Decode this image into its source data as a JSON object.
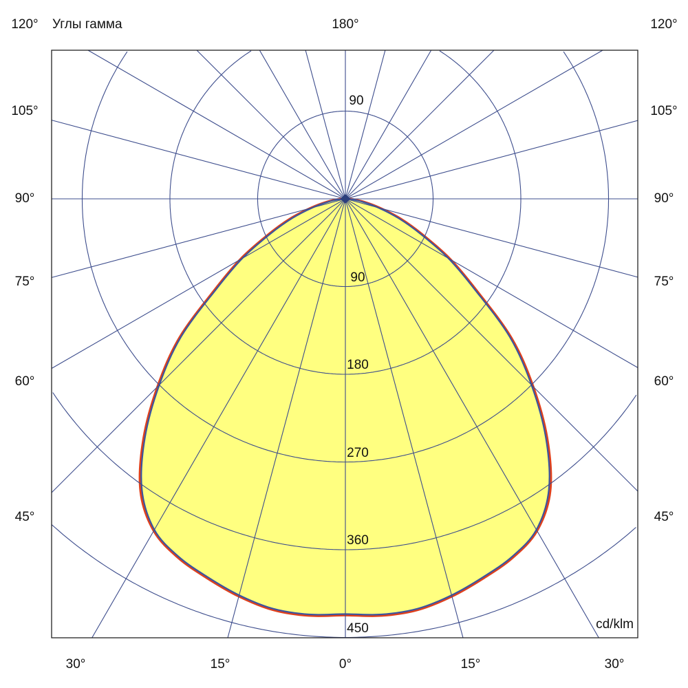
{
  "chart_data": {
    "type": "polar",
    "title": "",
    "angle_axis_label": "Углы гамма",
    "unit_label": "cd/klm",
    "top_label": "180°",
    "left_labels": [
      "120°",
      "105°",
      "90°",
      "75°",
      "60°",
      "45°"
    ],
    "right_labels": [
      "120°",
      "105°",
      "90°",
      "75°",
      "60°",
      "45°"
    ],
    "bottom_labels": [
      "30°",
      "15°",
      "0°",
      "15°",
      "30°"
    ],
    "ring_labels_lower": [
      "90",
      "180",
      "270",
      "360",
      "450"
    ],
    "ring_label_upper": "90",
    "radial_step_deg": 15,
    "ring_step": 90,
    "rlim": [
      0,
      450
    ],
    "fill_color": "#ffff80",
    "grid_color": "#3c4c8c",
    "series": [
      {
        "color": "#e0401c",
        "angles": [
          0,
          5,
          10,
          15,
          20,
          25,
          30,
          35,
          40,
          45,
          50,
          55,
          60,
          65,
          70,
          75,
          80,
          85,
          90
        ],
        "values": [
          427,
          429,
          428,
          422,
          414,
          406,
          393,
          366,
          322,
          272,
          222,
          164,
          124,
          87,
          60,
          36,
          19,
          7,
          0
        ]
      },
      {
        "color": "#3a55a0",
        "angles": [
          0,
          5,
          10,
          15,
          20,
          25,
          30,
          35,
          40,
          45,
          50,
          55,
          60,
          65,
          70,
          75,
          80,
          85,
          90
        ],
        "values": [
          426,
          428,
          427,
          421,
          413,
          405,
          392,
          364,
          320,
          270,
          220,
          162,
          122,
          85,
          58,
          35,
          18,
          6,
          0
        ]
      }
    ]
  }
}
